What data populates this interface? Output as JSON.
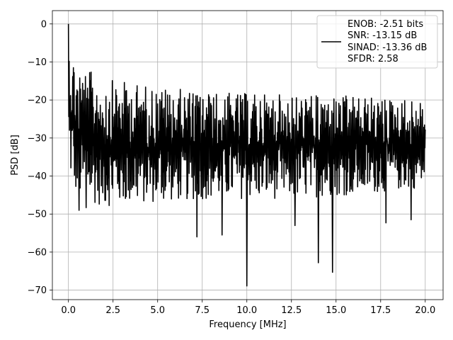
{
  "chart_data": {
    "type": "line",
    "title": "",
    "xlabel": "Frequency [MHz]",
    "ylabel": "PSD [dB]",
    "xlim": [
      -0.9,
      21.0
    ],
    "ylim": [
      -72.5,
      3.5
    ],
    "grid": true,
    "legend_position": "top-right",
    "x_ticks": [
      {
        "value": 0.0,
        "label": "0.0"
      },
      {
        "value": 2.5,
        "label": "2.5"
      },
      {
        "value": 5.0,
        "label": "5.0"
      },
      {
        "value": 7.5,
        "label": "7.5"
      },
      {
        "value": 10.0,
        "label": "10.0"
      },
      {
        "value": 12.5,
        "label": "12.5"
      },
      {
        "value": 15.0,
        "label": "15.0"
      },
      {
        "value": 17.5,
        "label": "17.5"
      },
      {
        "value": 20.0,
        "label": "20.0"
      }
    ],
    "y_ticks": [
      {
        "value": 0,
        "label": "0"
      },
      {
        "value": -10,
        "label": "−10"
      },
      {
        "value": -20,
        "label": "−20"
      },
      {
        "value": -30,
        "label": "−30"
      },
      {
        "value": -40,
        "label": "−40"
      },
      {
        "value": -50,
        "label": "−50"
      },
      {
        "value": -60,
        "label": "−60"
      },
      {
        "value": -70,
        "label": "−70"
      }
    ],
    "legend": {
      "color": "#000000",
      "lines": [
        "ENOB: -2.51 bits",
        "SNR: -13.15 dB",
        "SINAD: -13.36 dB",
        "SFDR: 2.58"
      ]
    },
    "series": [
      {
        "color": "#000000",
        "x_range": [
          0.0,
          20.0
        ],
        "x_step": 0.1,
        "envelope": {
          "x": [
            0.0,
            0.05,
            0.5,
            2.0,
            5.0,
            8.0,
            12.0,
            16.0,
            20.0
          ],
          "top": [
            0.0,
            -5.0,
            -10.5,
            -14.5,
            -16.5,
            -18.0,
            -18.5,
            -19.0,
            -20.0
          ],
          "bottom": [
            -35.0,
            -40.0,
            -46.0,
            -48.0,
            -47.0,
            -46.0,
            -46.0,
            -45.0,
            -43.0
          ]
        },
        "deep_dips": [
          {
            "x": 0.6,
            "y": -49.0
          },
          {
            "x": 1.0,
            "y": -48.3
          },
          {
            "x": 7.2,
            "y": -56.0
          },
          {
            "x": 8.6,
            "y": -55.5
          },
          {
            "x": 10.0,
            "y": -68.9
          },
          {
            "x": 12.7,
            "y": -53.0
          },
          {
            "x": 14.0,
            "y": -62.8
          },
          {
            "x": 14.8,
            "y": -65.3
          },
          {
            "x": 17.8,
            "y": -52.3
          },
          {
            "x": 19.2,
            "y": -51.5
          }
        ]
      }
    ]
  }
}
